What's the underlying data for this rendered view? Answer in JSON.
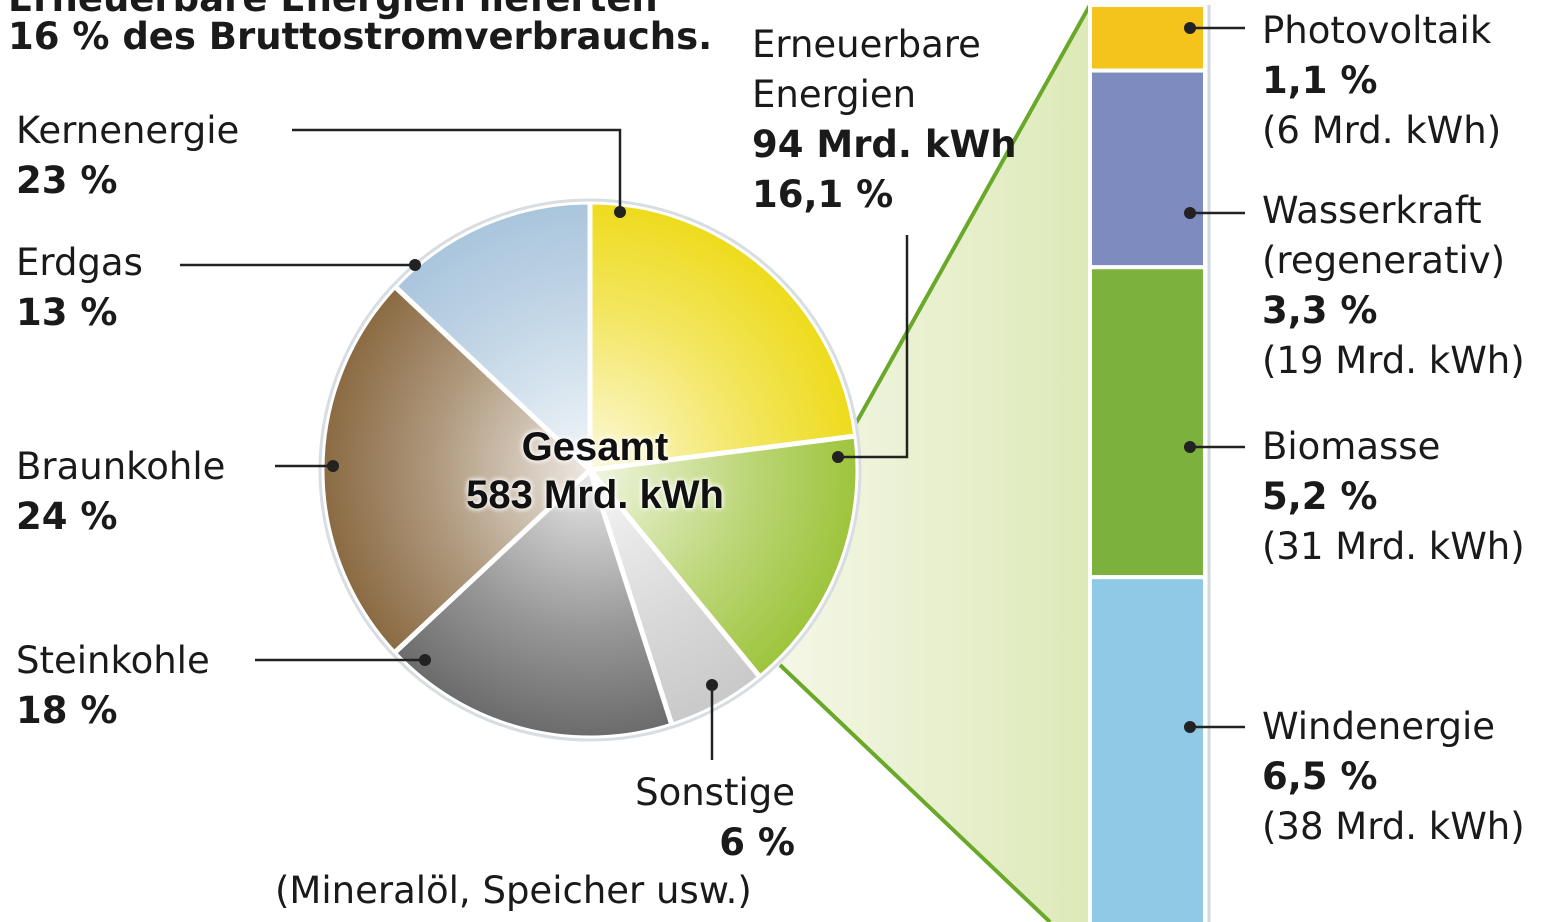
{
  "chart_data": [
    {
      "type": "pie",
      "title": [
        "Erneuerbare Energien lieferten",
        "16 % des Bruttostromverbrauchs."
      ],
      "center_title": "Gesamt",
      "center_value": "583 Mrd. kWh",
      "categories": [
        "Kernenergie",
        "Erneuerbare Energien",
        "Sonstige",
        "Steinkohle",
        "Braunkohle",
        "Erdgas"
      ],
      "values": [
        23,
        16.1,
        6,
        18,
        24,
        13
      ],
      "value_labels": [
        "23 %",
        "16,1 %",
        "6 %",
        "18 %",
        "24 %",
        "13 %"
      ],
      "energy_label": "94 Mrd. kWh",
      "note": "(Mineralöl, Speicher usw.)",
      "colors": [
        "#eedb1c",
        "#9ec43c",
        "#c9c9c9",
        "#6b6b6b",
        "#8a6a42",
        "#a9c5dc"
      ]
    },
    {
      "type": "stacked_bar",
      "categories": [
        "Photovoltaik",
        "Wasserkraft (regenerativ)",
        "Biomasse",
        "Windenergie"
      ],
      "values": [
        1.1,
        3.3,
        5.2,
        6.5
      ],
      "value_labels": [
        "1,1 %",
        "3,3 %",
        "5,2 %",
        "6,5 %"
      ],
      "energy_labels": [
        "(6 Mrd. kWh)",
        "(19 Mrd. kWh)",
        "(31 Mrd. kWh)",
        "(38 Mrd. kWh)"
      ],
      "colors": [
        "#f5c41c",
        "#7e8bbf",
        "#7db13d",
        "#8fc9e6"
      ]
    }
  ]
}
